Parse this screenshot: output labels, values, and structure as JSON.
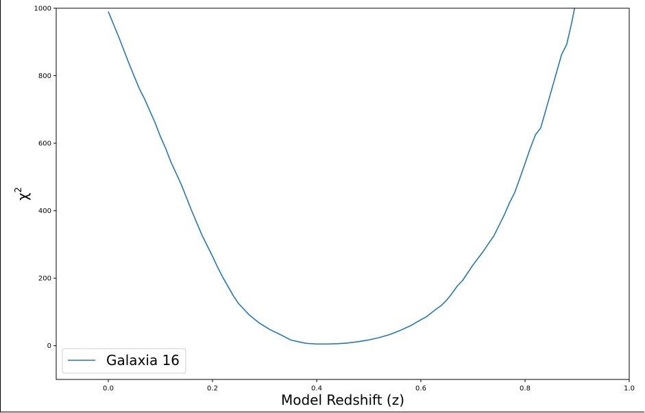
{
  "chart_data": {
    "type": "line",
    "title": "",
    "xlabel": "Model Redshift (z)",
    "ylabel": "χ",
    "ylabel_superscript": "2",
    "xlim": [
      -0.1,
      1.0
    ],
    "ylim": [
      -100,
      1000
    ],
    "x_ticks": [
      0.0,
      0.2,
      0.4,
      0.6,
      0.8,
      1.0
    ],
    "x_tick_labels": [
      "0.0",
      "0.2",
      "0.4",
      "0.6",
      "0.8",
      "1.0"
    ],
    "y_ticks": [
      0,
      200,
      400,
      600,
      800,
      1000
    ],
    "y_tick_labels": [
      "0",
      "200",
      "400",
      "600",
      "800",
      "1000"
    ],
    "grid": false,
    "legend_position": "lower-left",
    "series": [
      {
        "name": "Galaxia 16",
        "color": "#1f77b4",
        "x": [
          0.0,
          0.02,
          0.04,
          0.06,
          0.07,
          0.08,
          0.09,
          0.1,
          0.11,
          0.12,
          0.14,
          0.16,
          0.18,
          0.2,
          0.21,
          0.22,
          0.24,
          0.25,
          0.27,
          0.29,
          0.31,
          0.33,
          0.35,
          0.37,
          0.38,
          0.4,
          0.42,
          0.44,
          0.46,
          0.48,
          0.5,
          0.52,
          0.54,
          0.56,
          0.58,
          0.6,
          0.61,
          0.63,
          0.64,
          0.65,
          0.66,
          0.67,
          0.68,
          0.7,
          0.72,
          0.73,
          0.74,
          0.75,
          0.76,
          0.77,
          0.78,
          0.79,
          0.8,
          0.81,
          0.82,
          0.83,
          0.85,
          0.87,
          0.88,
          0.89,
          0.895
        ],
        "y": [
          990,
          915,
          835,
          760,
          730,
          695,
          660,
          620,
          585,
          545,
          478,
          400,
          327,
          265,
          232,
          202,
          148,
          125,
          92,
          67,
          48,
          33,
          17,
          10,
          7,
          5,
          5,
          6,
          8,
          12,
          17,
          24,
          33,
          45,
          59,
          77,
          85,
          109,
          120,
          136,
          155,
          177,
          193,
          239,
          280,
          303,
          325,
          356,
          387,
          423,
          453,
          496,
          540,
          585,
          625,
          645,
          753,
          862,
          893,
          960,
          1000
        ]
      }
    ]
  }
}
